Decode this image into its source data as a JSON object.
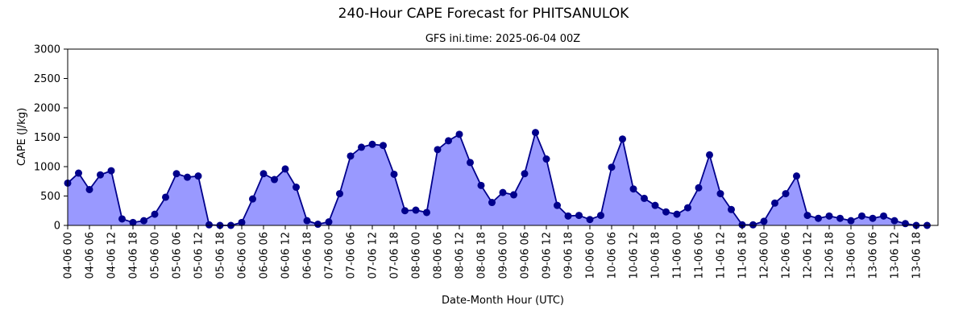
{
  "chart_data": {
    "type": "area",
    "title": "240-Hour CAPE Forecast for PHITSANULOK",
    "subtitle": "GFS ini.time: 2025-06-04 00Z",
    "xlabel": "Date-Month Hour (UTC)",
    "ylabel": "CAPE (J/kg)",
    "ylim": [
      0,
      3000
    ],
    "yticks": [
      0,
      500,
      1000,
      1500,
      2000,
      2500,
      3000
    ],
    "xlim": [
      0,
      240
    ],
    "x_step_hours": 3,
    "xtick_step_hours": 6,
    "x_start_label": "04-06 00",
    "xtick_labels": [
      "04-06 00",
      "04-06 06",
      "04-06 12",
      "04-06 18",
      "05-06 00",
      "05-06 06",
      "05-06 12",
      "05-06 18",
      "06-06 00",
      "06-06 06",
      "06-06 12",
      "06-06 18",
      "07-06 00",
      "07-06 06",
      "07-06 12",
      "07-06 18",
      "08-06 00",
      "08-06 06",
      "08-06 12",
      "08-06 18",
      "09-06 00",
      "09-06 06",
      "09-06 12",
      "09-06 18",
      "10-06 00",
      "10-06 06",
      "10-06 12",
      "10-06 18",
      "11-06 00",
      "11-06 06",
      "11-06 12",
      "11-06 18",
      "12-06 00",
      "12-06 06",
      "12-06 12",
      "12-06 18",
      "13-06 00",
      "13-06 06",
      "13-06 12",
      "13-06 18"
    ],
    "series": [
      {
        "name": "",
        "values": [
          720,
          890,
          610,
          860,
          930,
          110,
          50,
          80,
          190,
          480,
          880,
          820,
          840,
          10,
          0,
          0,
          50,
          450,
          880,
          780,
          960,
          650,
          80,
          20,
          60,
          540,
          1180,
          1330,
          1380,
          1360,
          870,
          250,
          260,
          220,
          1290,
          1440,
          1550,
          1070,
          680,
          390,
          560,
          520,
          880,
          1580,
          1130,
          340,
          160,
          170,
          100,
          170,
          990,
          1470,
          620,
          460,
          340,
          230,
          190,
          300,
          640,
          1200,
          540,
          270,
          10,
          10,
          70,
          380,
          540,
          840,
          170,
          120,
          160,
          120,
          80,
          160,
          120,
          160,
          80,
          30,
          0,
          0
        ]
      }
    ],
    "colors": {
      "fill": "#9999ff",
      "line": "#00008b",
      "marker": "#00008b"
    },
    "grid": false,
    "legend": "none"
  }
}
